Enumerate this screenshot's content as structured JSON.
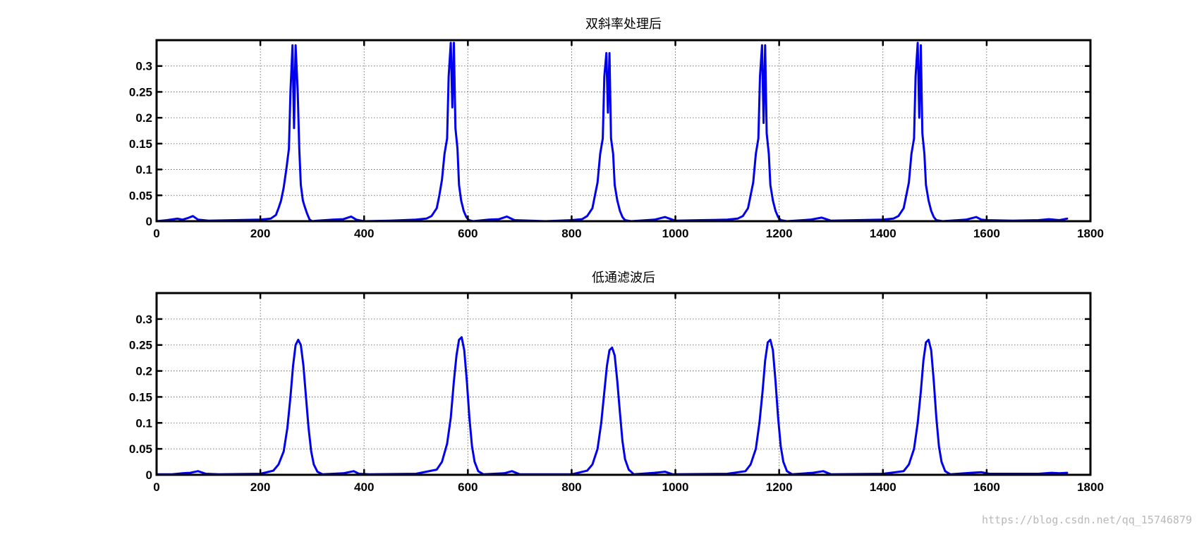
{
  "watermark": "https://blog.csdn.net/qq_15746879",
  "chart_data": [
    {
      "type": "line",
      "title": "双斜率处理后",
      "xlim": [
        0,
        1800
      ],
      "ylim": [
        0,
        0.35
      ],
      "xticks": [
        0,
        200,
        400,
        600,
        800,
        1000,
        1200,
        1400,
        1600,
        1800
      ],
      "yticks": [
        0,
        0.05,
        0.1,
        0.15,
        0.2,
        0.25,
        0.3
      ],
      "ytick_labels": [
        "0",
        "0.05",
        "0.1",
        "0.15",
        "0.2",
        "0.25",
        "0.3"
      ],
      "grid": true,
      "line_color": "#0000ee",
      "series": [
        {
          "x": [
            0,
            20,
            40,
            50,
            60,
            70,
            80,
            100,
            150,
            200,
            220,
            230,
            235,
            240,
            245,
            250,
            255,
            258,
            262,
            265,
            268,
            272,
            275,
            278,
            282,
            285,
            290,
            295,
            300,
            310,
            340,
            360,
            375,
            385,
            400,
            450,
            500,
            520,
            530,
            540,
            545,
            550,
            555,
            560,
            563,
            567,
            570,
            573,
            576,
            580,
            583,
            587,
            592,
            597,
            602,
            610,
            640,
            660,
            675,
            690,
            750,
            800,
            820,
            830,
            840,
            845,
            850,
            855,
            860,
            863,
            867,
            870,
            873,
            876,
            880,
            883,
            888,
            893,
            898,
            903,
            915,
            960,
            980,
            1000,
            1050,
            1100,
            1120,
            1130,
            1140,
            1145,
            1150,
            1155,
            1160,
            1163,
            1167,
            1170,
            1173,
            1176,
            1180,
            1183,
            1188,
            1193,
            1198,
            1203,
            1215,
            1260,
            1282,
            1300,
            1350,
            1400,
            1420,
            1430,
            1440,
            1445,
            1450,
            1455,
            1460,
            1463,
            1467,
            1470,
            1473,
            1476,
            1480,
            1483,
            1488,
            1493,
            1498,
            1503,
            1515,
            1560,
            1580,
            1590,
            1600,
            1650,
            1700,
            1720,
            1740,
            1755
          ],
          "y": [
            0,
            0.002,
            0.005,
            0.003,
            0.006,
            0.01,
            0.003,
            0.001,
            0.002,
            0.003,
            0.005,
            0.012,
            0.025,
            0.04,
            0.065,
            0.1,
            0.14,
            0.25,
            0.34,
            0.18,
            0.34,
            0.25,
            0.14,
            0.07,
            0.04,
            0.03,
            0.015,
            0.003,
            0,
            0.001,
            0.003,
            0.004,
            0.009,
            0.003,
            0,
            0.001,
            0.003,
            0.005,
            0.01,
            0.025,
            0.05,
            0.08,
            0.13,
            0.16,
            0.28,
            0.345,
            0.22,
            0.345,
            0.18,
            0.14,
            0.07,
            0.04,
            0.02,
            0.008,
            0.002,
            0,
            0.003,
            0.004,
            0.009,
            0.002,
            0,
            0.002,
            0.004,
            0.01,
            0.025,
            0.05,
            0.075,
            0.13,
            0.16,
            0.28,
            0.325,
            0.21,
            0.325,
            0.16,
            0.13,
            0.07,
            0.04,
            0.02,
            0.008,
            0.002,
            0,
            0.003,
            0.008,
            0.001,
            0.002,
            0.003,
            0.005,
            0.01,
            0.025,
            0.05,
            0.075,
            0.13,
            0.16,
            0.28,
            0.34,
            0.19,
            0.34,
            0.17,
            0.13,
            0.07,
            0.04,
            0.02,
            0.008,
            0.002,
            0,
            0.003,
            0.007,
            0.001,
            0.002,
            0.003,
            0.005,
            0.01,
            0.025,
            0.05,
            0.075,
            0.13,
            0.16,
            0.28,
            0.345,
            0.2,
            0.34,
            0.17,
            0.13,
            0.07,
            0.04,
            0.02,
            0.008,
            0.002,
            0,
            0.003,
            0.008,
            0.003,
            0.002,
            0.001,
            0.002,
            0.004,
            0.002,
            0.005
          ]
        }
      ]
    },
    {
      "type": "line",
      "title": "低通滤波后",
      "xlim": [
        0,
        1800
      ],
      "ylim": [
        0,
        0.35
      ],
      "xticks": [
        0,
        200,
        400,
        600,
        800,
        1000,
        1200,
        1400,
        1600,
        1800
      ],
      "yticks": [
        0,
        0.05,
        0.1,
        0.15,
        0.2,
        0.25,
        0.3
      ],
      "ytick_labels": [
        "0",
        "0.05",
        "0.1",
        "0.15",
        "0.2",
        "0.25",
        "0.3"
      ],
      "grid": true,
      "line_color": "#0000ee",
      "series": [
        {
          "x": [
            0,
            30,
            50,
            65,
            80,
            95,
            120,
            200,
            225,
            235,
            245,
            252,
            258,
            263,
            268,
            273,
            278,
            283,
            288,
            293,
            298,
            303,
            310,
            320,
            360,
            380,
            390,
            410,
            500,
            540,
            550,
            560,
            567,
            573,
            578,
            583,
            588,
            593,
            598,
            603,
            608,
            613,
            620,
            630,
            670,
            685,
            700,
            800,
            830,
            840,
            850,
            857,
            863,
            868,
            873,
            878,
            883,
            888,
            893,
            898,
            903,
            910,
            920,
            960,
            980,
            995,
            1100,
            1135,
            1145,
            1155,
            1162,
            1168,
            1173,
            1178,
            1183,
            1188,
            1193,
            1198,
            1203,
            1208,
            1215,
            1225,
            1265,
            1285,
            1300,
            1400,
            1440,
            1450,
            1460,
            1467,
            1473,
            1478,
            1483,
            1488,
            1493,
            1498,
            1503,
            1508,
            1513,
            1520,
            1530,
            1570,
            1590,
            1605,
            1700,
            1725,
            1740,
            1755
          ],
          "y": [
            0.001,
            0.001,
            0.003,
            0.004,
            0.007,
            0.002,
            0.001,
            0.002,
            0.008,
            0.02,
            0.045,
            0.09,
            0.15,
            0.21,
            0.25,
            0.26,
            0.25,
            0.21,
            0.15,
            0.09,
            0.045,
            0.02,
            0.006,
            0.001,
            0.003,
            0.007,
            0.002,
            0.001,
            0.002,
            0.01,
            0.025,
            0.06,
            0.11,
            0.18,
            0.23,
            0.26,
            0.265,
            0.24,
            0.18,
            0.11,
            0.055,
            0.025,
            0.007,
            0.001,
            0.003,
            0.007,
            0.001,
            0.001,
            0.008,
            0.02,
            0.05,
            0.1,
            0.16,
            0.21,
            0.24,
            0.245,
            0.23,
            0.18,
            0.12,
            0.065,
            0.03,
            0.01,
            0.001,
            0.004,
            0.006,
            0.001,
            0.002,
            0.007,
            0.02,
            0.05,
            0.1,
            0.16,
            0.22,
            0.255,
            0.26,
            0.24,
            0.18,
            0.11,
            0.055,
            0.025,
            0.007,
            0.001,
            0.004,
            0.007,
            0.001,
            0.002,
            0.007,
            0.02,
            0.05,
            0.1,
            0.16,
            0.22,
            0.255,
            0.26,
            0.24,
            0.18,
            0.11,
            0.055,
            0.025,
            0.007,
            0.001,
            0.004,
            0.005,
            0.002,
            0.002,
            0.004,
            0.003,
            0.004
          ]
        }
      ]
    }
  ]
}
